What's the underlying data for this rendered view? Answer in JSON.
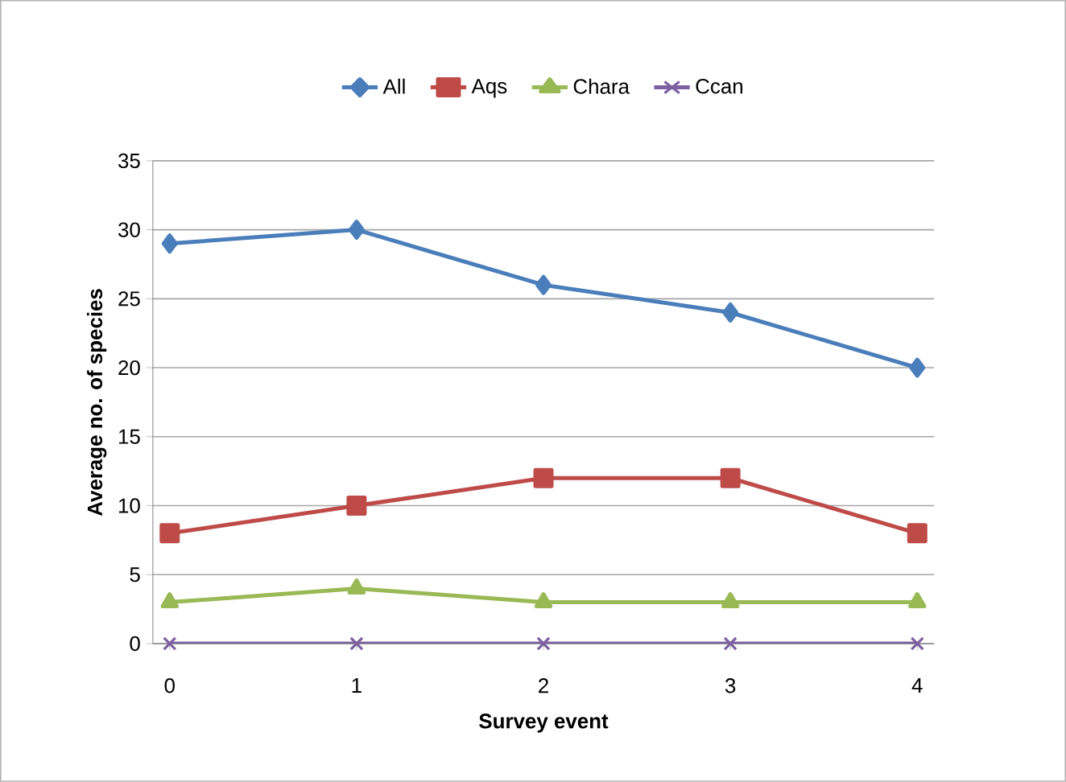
{
  "chart_data": {
    "type": "line",
    "xlabel": "Survey event",
    "ylabel": "Average no. of species",
    "categories": [
      "0",
      "1",
      "2",
      "3",
      "4"
    ],
    "series": [
      {
        "name": "All",
        "color": "#4a7ebb",
        "marker": "diamond",
        "values": [
          29,
          30,
          26,
          24,
          20
        ]
      },
      {
        "name": "Aqs",
        "color": "#be4b48",
        "marker": "square",
        "values": [
          8,
          10,
          12,
          12,
          8
        ]
      },
      {
        "name": "Chara",
        "color": "#98b954",
        "marker": "triangle",
        "values": [
          3,
          4,
          3,
          3,
          3
        ]
      },
      {
        "name": "Ccan",
        "color": "#7d60a0",
        "marker": "cross",
        "values": [
          0,
          0,
          0,
          0,
          0
        ]
      }
    ],
    "ylim": [
      0,
      35
    ],
    "yticks": [
      0,
      5,
      10,
      15,
      20,
      25,
      30,
      35
    ],
    "grid": "y",
    "legend": "top",
    "line_style": "solid"
  }
}
